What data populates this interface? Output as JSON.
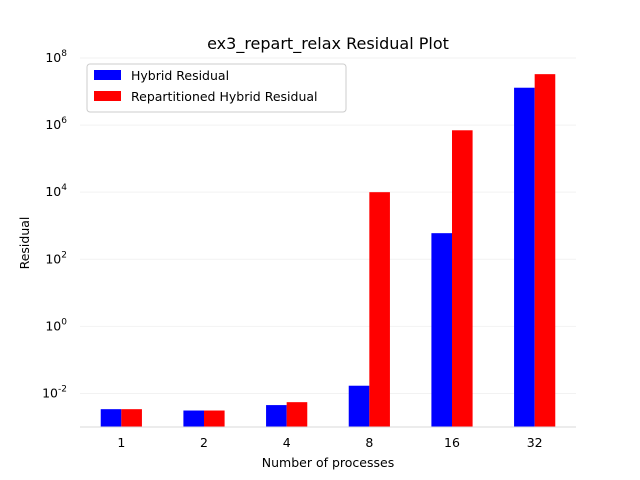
{
  "chart_data": {
    "type": "bar",
    "title": "ex3_repart_relax Residual Plot",
    "xlabel": "Number of processes",
    "ylabel": "Residual",
    "yscale": "log",
    "ylim": [
      0.001,
      100000000
    ],
    "yticks": [
      {
        "exp": "-2"
      },
      {
        "exp": "0"
      },
      {
        "exp": "2"
      },
      {
        "exp": "4"
      },
      {
        "exp": "6"
      },
      {
        "exp": "8"
      }
    ],
    "tick_base": "10",
    "categories": [
      "1",
      "2",
      "4",
      "8",
      "16",
      "32"
    ],
    "series": [
      {
        "name": "Hybrid Residual",
        "color": "#0000ff",
        "values": [
          0.0034,
          0.0031,
          0.0045,
          0.017,
          600,
          13000000
        ]
      },
      {
        "name": "Repartitioned Hybrid Residual",
        "color": "#ff0000",
        "values": [
          0.0034,
          0.0031,
          0.0055,
          10000,
          700000,
          33000000
        ]
      }
    ],
    "grid": true,
    "legend": "top-left"
  }
}
